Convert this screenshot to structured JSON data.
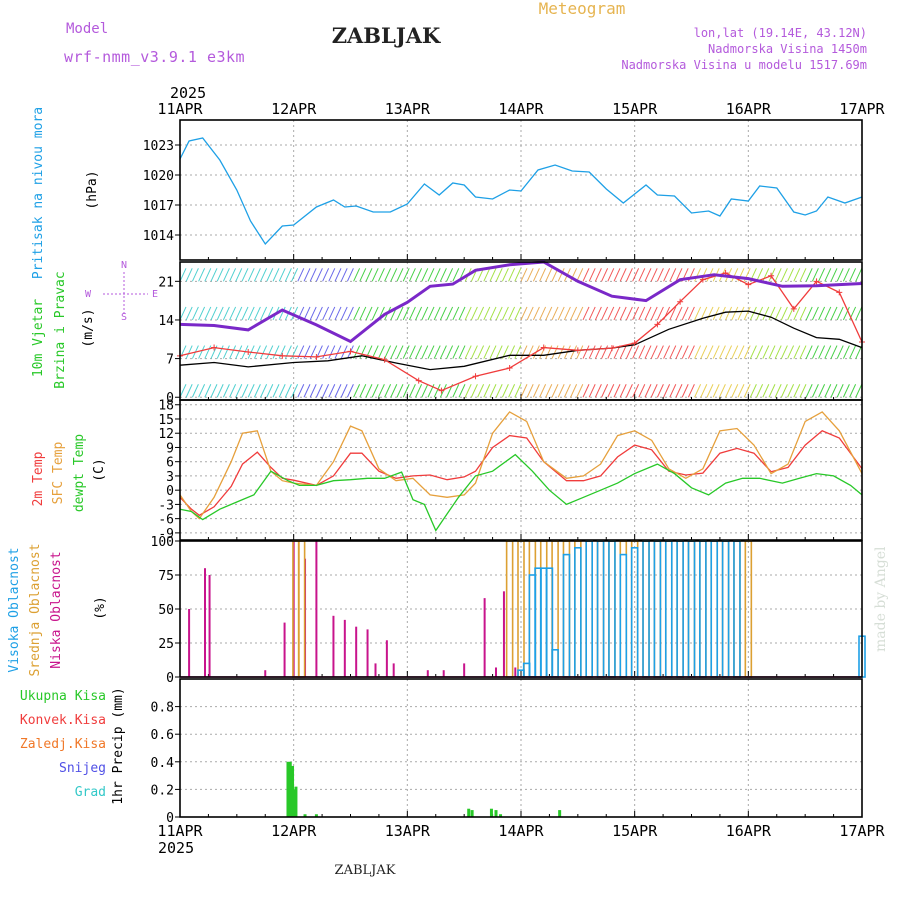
{
  "header": {
    "model_label": "Model",
    "model_name": "wrf-nmm_v3.9.1  e3km",
    "station_title": "ZABLJAK",
    "product": "Meteogram",
    "coords": "lon,lat (19.14E, 43.12N)",
    "elevation": "Nadmorska Visina 1450m",
    "model_elevation": "Nadmorska Visina u modelu 1517.69m",
    "year_top": "2025",
    "year_bottom": "2025",
    "footer_station": "ZABLJAK",
    "credit": "made by Angel"
  },
  "colors": {
    "pressure": "#1ea0e6",
    "temp2m": "#f03c3c",
    "sfc": "#e6a03c",
    "dewpt": "#28c828",
    "visoka": "#1ea0e6",
    "srednja": "#dca032",
    "niska": "#c8148c",
    "ukupna": "#28c828",
    "konvek": "#f03c3c",
    "zaledj": "#f07828",
    "snijeg": "#5050e6",
    "grad": "#32c8c8",
    "title_purple": "#b45adc",
    "meteogram_gold": "#e6b450"
  },
  "days": [
    "11APR",
    "12APR",
    "13APR",
    "14APR",
    "15APR",
    "16APR",
    "17APR"
  ],
  "chart_data": [
    {
      "type": "line",
      "panel": "pressure",
      "labels": [
        "Pritisak na nivou mora",
        "(hPa)"
      ],
      "ylabel": "hPa",
      "ylim": [
        1011.5,
        1025.5
      ],
      "yticks": [
        1014,
        1017,
        1020,
        1023
      ],
      "series": [
        {
          "name": "Pritisak na nivou mora",
          "x": [
            0,
            0.08,
            0.2,
            0.35,
            0.5,
            0.62,
            0.75,
            0.9,
            1.0,
            1.2,
            1.35,
            1.45,
            1.55,
            1.7,
            1.85,
            2.0,
            2.15,
            2.28,
            2.4,
            2.5,
            2.6,
            2.75,
            2.9,
            3.0,
            3.15,
            3.3,
            3.45,
            3.6,
            3.75,
            3.9,
            4.0,
            4.1,
            4.2,
            4.35,
            4.5,
            4.65,
            4.75,
            4.85,
            5.0,
            5.1,
            5.25,
            5.4,
            5.5,
            5.6,
            5.7,
            5.85,
            6.0
          ],
          "y": [
            1021.6,
            1023.4,
            1023.7,
            1021.5,
            1018.5,
            1015.4,
            1013.1,
            1014.9,
            1015.0,
            1016.8,
            1017.5,
            1016.8,
            1016.9,
            1016.3,
            1016.3,
            1017.1,
            1019.1,
            1018.0,
            1019.2,
            1019.0,
            1017.8,
            1017.6,
            1018.5,
            1018.4,
            1020.5,
            1021.0,
            1020.4,
            1020.3,
            1018.6,
            1017.2,
            1018.1,
            1019.0,
            1018.0,
            1017.9,
            1016.2,
            1016.4,
            1015.9,
            1017.6,
            1017.4,
            1018.9,
            1018.7,
            1016.3,
            1016.0,
            1016.4,
            1017.8,
            1017.2,
            1017.8
          ]
        }
      ]
    },
    {
      "type": "line",
      "panel": "wind",
      "labels": [
        "10m Vjetar",
        "Brzina i Pravac",
        "(m/s)"
      ],
      "compass_labels": {
        "north": "N",
        "south": "S",
        "west": "W",
        "east": "E"
      },
      "ylim": [
        -0.5,
        24.5
      ],
      "yticks": [
        0,
        7,
        14,
        21
      ],
      "series": [
        {
          "name": "Brzina (mean)",
          "x": [
            0,
            0.3,
            0.6,
            1.0,
            1.3,
            1.6,
            1.9,
            2.2,
            2.5,
            2.9,
            3.2,
            3.5,
            3.8,
            4.0,
            4.3,
            4.6,
            4.8,
            5.0,
            5.2,
            5.4,
            5.6,
            5.8,
            6.0
          ],
          "y": [
            5.8,
            6.3,
            5.5,
            6.3,
            6.6,
            7.5,
            6.2,
            5.0,
            5.6,
            7.6,
            7.6,
            8.5,
            8.9,
            9.5,
            12.3,
            14.3,
            15.4,
            15.6,
            14.5,
            12.5,
            10.8,
            10.5,
            9.0
          ]
        },
        {
          "name": "Udari (gust)",
          "x": [
            0,
            0.3,
            0.6,
            0.9,
            1.2,
            1.5,
            1.8,
            2.1,
            2.3,
            2.6,
            2.9,
            3.2,
            3.5,
            3.8,
            4.0,
            4.2,
            4.4,
            4.6,
            4.8,
            5.0,
            5.2,
            5.4,
            5.6,
            5.8,
            6.0
          ],
          "y": [
            7.5,
            9.0,
            8.2,
            7.5,
            7.3,
            8.3,
            6.8,
            3.0,
            1.2,
            3.8,
            5.3,
            9.0,
            8.5,
            8.9,
            9.8,
            13.2,
            17.3,
            21.3,
            22.5,
            20.4,
            22.0,
            16.0,
            21.0,
            19.0,
            10.0
          ]
        },
        {
          "name": "Pravac (direction)",
          "x": [
            0,
            0.3,
            0.6,
            0.9,
            1.2,
            1.5,
            1.8,
            2.0,
            2.2,
            2.4,
            2.6,
            2.9,
            3.2,
            3.5,
            3.8,
            4.1,
            4.4,
            4.7,
            5.0,
            5.3,
            5.6,
            6.0
          ],
          "y": [
            13.2,
            13.0,
            12.2,
            15.8,
            13.1,
            10.1,
            15.0,
            17.2,
            20.1,
            20.5,
            23.0,
            24.0,
            24.5,
            21.0,
            18.3,
            17.5,
            21.3,
            22.2,
            21.5,
            20.1,
            20.2,
            20.6
          ]
        }
      ]
    },
    {
      "type": "line",
      "panel": "temperature",
      "labels": [
        "2m Temp",
        "SFC Temp",
        "dewpt Temp",
        "(C)"
      ],
      "ylim": [
        -10.5,
        19.0
      ],
      "yticks": [
        -9,
        -6,
        -3,
        0,
        3,
        6,
        9,
        12,
        15,
        18
      ],
      "series": [
        {
          "name": "2m Temp",
          "x": [
            0,
            0.1,
            0.17,
            0.3,
            0.45,
            0.55,
            0.68,
            0.8,
            0.9,
            1.0,
            1.2,
            1.35,
            1.5,
            1.6,
            1.75,
            1.9,
            2.05,
            2.2,
            2.35,
            2.5,
            2.6,
            2.75,
            2.9,
            3.05,
            3.2,
            3.4,
            3.55,
            3.7,
            3.85,
            4.0,
            4.15,
            4.3,
            4.45,
            4.6,
            4.75,
            4.9,
            5.05,
            5.2,
            5.35,
            5.5,
            5.65,
            5.8,
            6.0
          ],
          "y": [
            -1.5,
            -4.0,
            -5.3,
            -3.5,
            0.8,
            5.5,
            8.0,
            4.8,
            2.5,
            2.1,
            1.0,
            3.0,
            7.8,
            7.8,
            4.0,
            2.5,
            3.0,
            3.2,
            2.2,
            2.8,
            4.0,
            9.0,
            11.5,
            11.0,
            6.0,
            2.0,
            2.0,
            3.0,
            7.0,
            9.5,
            8.5,
            4.0,
            3.2,
            3.6,
            7.8,
            8.8,
            7.8,
            3.9,
            4.8,
            9.5,
            12.5,
            11.0,
            4.5
          ]
        },
        {
          "name": "SFC Temp",
          "x": [
            0,
            0.1,
            0.17,
            0.3,
            0.45,
            0.55,
            0.68,
            0.8,
            0.9,
            1.0,
            1.2,
            1.35,
            1.5,
            1.6,
            1.75,
            1.9,
            2.05,
            2.2,
            2.35,
            2.5,
            2.6,
            2.75,
            2.9,
            3.05,
            3.2,
            3.4,
            3.55,
            3.7,
            3.85,
            4.0,
            4.15,
            4.3,
            4.45,
            4.6,
            4.75,
            4.9,
            5.05,
            5.2,
            5.35,
            5.5,
            5.65,
            5.8,
            6.0
          ],
          "y": [
            -1.0,
            -4.5,
            -6.0,
            -1.5,
            6.0,
            12.0,
            12.5,
            4.0,
            2.0,
            1.5,
            1.0,
            6.0,
            13.5,
            12.5,
            4.5,
            2.0,
            2.5,
            -1.0,
            -1.5,
            -1.0,
            1.5,
            12.0,
            16.5,
            14.5,
            6.0,
            2.5,
            3.0,
            5.5,
            11.5,
            12.5,
            10.5,
            4.5,
            2.5,
            4.5,
            12.5,
            13.0,
            9.5,
            3.5,
            5.5,
            14.5,
            16.5,
            12.5,
            3.5
          ]
        },
        {
          "name": "dewpt Temp",
          "x": [
            0,
            0.1,
            0.2,
            0.35,
            0.5,
            0.65,
            0.8,
            0.95,
            1.05,
            1.2,
            1.35,
            1.5,
            1.65,
            1.8,
            1.95,
            2.05,
            2.15,
            2.25,
            2.35,
            2.45,
            2.6,
            2.75,
            2.95,
            3.1,
            3.25,
            3.4,
            3.55,
            3.7,
            3.85,
            4.0,
            4.2,
            4.35,
            4.5,
            4.65,
            4.8,
            4.95,
            5.1,
            5.3,
            5.45,
            5.6,
            5.75,
            5.9,
            6.0
          ],
          "y": [
            -4.0,
            -4.5,
            -6.2,
            -4.0,
            -2.5,
            -1.0,
            4.0,
            2.0,
            1.0,
            1.0,
            2.0,
            2.2,
            2.5,
            2.5,
            3.8,
            -2.0,
            -3.0,
            -8.5,
            -5.0,
            -1.5,
            3.0,
            4.0,
            7.5,
            4.0,
            0.0,
            -3.0,
            -1.5,
            0.0,
            1.5,
            3.5,
            5.5,
            3.5,
            0.5,
            -1.0,
            1.5,
            2.5,
            2.5,
            1.5,
            2.5,
            3.5,
            3.0,
            1.0,
            -1.0
          ]
        }
      ]
    },
    {
      "type": "bar",
      "panel": "cloud",
      "labels": [
        "Visoka Oblacnost",
        "Srednja Oblacnost",
        "Niska Oblacnost",
        "(%)"
      ],
      "ylim": [
        0,
        100
      ],
      "yticks": [
        0,
        25,
        50,
        75,
        100
      ],
      "series": [
        {
          "name": "Niska Oblacnost",
          "x": [
            0.08,
            0.22,
            0.26,
            0.75,
            0.92,
            1.0,
            1.1,
            1.2,
            1.35,
            1.45,
            1.55,
            1.65,
            1.72,
            1.82,
            1.88,
            2.18,
            2.32,
            2.5,
            2.68,
            2.78,
            2.85,
            2.95
          ],
          "y": [
            50,
            80,
            75,
            5,
            40,
            100,
            87,
            100,
            45,
            42,
            37,
            35,
            10,
            27,
            10,
            5,
            5,
            10,
            58,
            7,
            63,
            7
          ]
        },
        {
          "name": "Srednja Oblacnost",
          "x": [
            1.02,
            1.07,
            2.9,
            3.0,
            3.1,
            3.2,
            3.3,
            3.4,
            3.5,
            3.6,
            3.7,
            3.8,
            3.9,
            4.0,
            4.1,
            4.2,
            4.3,
            4.4,
            4.5,
            4.6,
            4.7,
            4.8,
            4.9,
            5.0
          ],
          "y": [
            100,
            100,
            100,
            100,
            100,
            100,
            100,
            100,
            100,
            100,
            100,
            100,
            100,
            100,
            100,
            100,
            100,
            100,
            100,
            100,
            100,
            100,
            100,
            100
          ]
        },
        {
          "name": "Visoka Oblacnost",
          "x": [
            3.0,
            3.05,
            3.1,
            3.15,
            3.2,
            3.25,
            3.3,
            3.4,
            3.5,
            3.6,
            3.7,
            3.8,
            3.9,
            4.0,
            4.1,
            4.2,
            4.3,
            4.4,
            4.5,
            4.6,
            4.7,
            4.8,
            4.9,
            6.0
          ],
          "y": [
            5,
            10,
            75,
            80,
            80,
            80,
            20,
            90,
            95,
            100,
            100,
            100,
            90,
            95,
            100,
            100,
            100,
            100,
            100,
            100,
            100,
            100,
            100,
            30
          ]
        }
      ]
    },
    {
      "type": "bar",
      "panel": "precip",
      "labels": [
        "Ukupna Kisa",
        "Konvek.Kisa",
        "Zaledj.Kisa",
        "Snijeg",
        "Grad",
        "1hr Precip (mm)"
      ],
      "ylim": [
        0,
        1.0
      ],
      "yticks": [
        0,
        0.2,
        0.4,
        0.6,
        0.8
      ],
      "yticklabels": [
        "0",
        "0.2",
        "0.4",
        "0.6",
        "0.8"
      ],
      "series": [
        {
          "name": "Ukupna Kisa",
          "x": [
            0.95,
            0.97,
            0.99,
            1.0,
            1.02,
            1.1,
            1.2,
            2.54,
            2.57,
            2.74,
            2.78,
            2.82,
            3.34
          ],
          "y": [
            0.4,
            0.4,
            0.37,
            0.2,
            0.22,
            0.02,
            0.02,
            0.06,
            0.05,
            0.06,
            0.05,
            0.02,
            0.05
          ]
        },
        {
          "name": "Konvek.Kisa",
          "x": [],
          "y": []
        },
        {
          "name": "Zaledj.Kisa",
          "x": [],
          "y": []
        },
        {
          "name": "Snijeg",
          "x": [],
          "y": []
        },
        {
          "name": "Grad",
          "x": [],
          "y": []
        }
      ]
    }
  ]
}
